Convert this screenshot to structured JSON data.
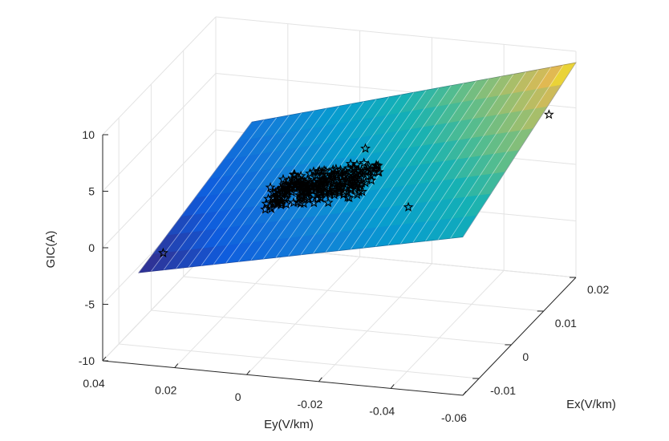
{
  "chart_data": {
    "type": "surface-scatter3d",
    "title": "",
    "xlabel": "Ex(V/km)",
    "ylabel": "Ey(V/km)",
    "zlabel": "GIC(A)",
    "xlim": [
      -0.015,
      0.02
    ],
    "ylim": [
      -0.06,
      0.04
    ],
    "zlim": [
      -10,
      10
    ],
    "xticks": [
      -0.01,
      0,
      0.01,
      0.02
    ],
    "xtick_labels": [
      "-0.01",
      "0",
      "0.01",
      "0.02"
    ],
    "yticks": [
      0.04,
      0.02,
      0,
      -0.02,
      -0.04,
      -0.06
    ],
    "ytick_labels": [
      "0.04",
      "0.02",
      "0",
      "-0.02",
      "-0.04",
      "-0.06"
    ],
    "zticks": [
      -10,
      -5,
      0,
      5,
      10
    ],
    "ztick_labels": [
      "-10",
      "-5",
      "0",
      "5",
      "10"
    ],
    "grid": true,
    "surface": {
      "colormap": "parula",
      "corners": [
        {
          "ex": -0.015,
          "ey": 0.03,
          "gic": -1.9
        },
        {
          "ex": 0.02,
          "ey": 0.03,
          "gic": 1.0
        },
        {
          "ex": 0.02,
          "ey": -0.06,
          "gic": 9.0
        },
        {
          "ex": -0.015,
          "ey": -0.06,
          "gic": 4.0
        }
      ]
    },
    "scatter": {
      "marker": "pentagram",
      "color": "#000000",
      "highlighted_points": [
        {
          "ex": -0.013,
          "ey": 0.025,
          "gic": -0.6
        },
        {
          "ex": 0.015,
          "ey": -0.057,
          "gic": 5.8
        },
        {
          "ex": 0.005,
          "ey": -0.015,
          "gic": 4.5
        },
        {
          "ex": -0.001,
          "ey": 0.006,
          "gic": 2.2
        },
        {
          "ex": -0.004,
          "ey": -0.035,
          "gic": 2.6
        }
      ],
      "cluster": {
        "ex_range": [
          -0.003,
          0.004
        ],
        "ey_range": [
          -0.02,
          0.006
        ],
        "gic_range": [
          0.5,
          3.8
        ],
        "approx_count": 260
      }
    }
  }
}
